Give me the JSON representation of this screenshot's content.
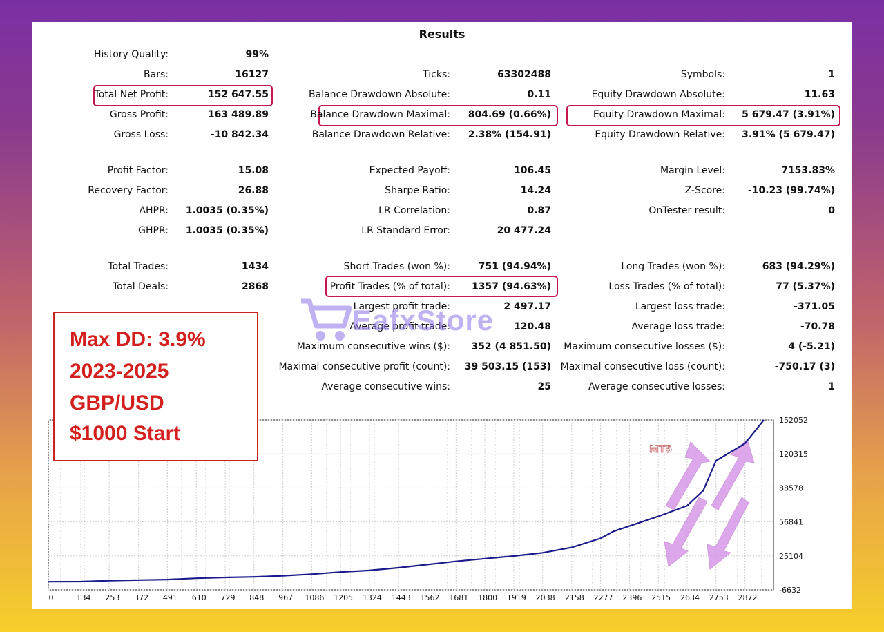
{
  "title": "Results",
  "stats": {
    "history_quality": {
      "label": "History Quality:",
      "value": "99%"
    },
    "bars": {
      "label": "Bars:",
      "value": "16127"
    },
    "ticks": {
      "label": "Ticks:",
      "value": "63302488"
    },
    "symbols": {
      "label": "Symbols:",
      "value": "1"
    },
    "total_net_profit": {
      "label": "Total Net Profit:",
      "value": "152 647.55"
    },
    "balance_dd_abs": {
      "label": "Balance Drawdown Absolute:",
      "value": "0.11"
    },
    "equity_dd_abs": {
      "label": "Equity Drawdown Absolute:",
      "value": "11.63"
    },
    "gross_profit": {
      "label": "Gross Profit:",
      "value": "163 489.89"
    },
    "balance_dd_max": {
      "label": "Balance Drawdown Maximal:",
      "value": "804.69 (0.66%)"
    },
    "equity_dd_max": {
      "label": "Equity Drawdown Maximal:",
      "value": "5 679.47 (3.91%)"
    },
    "gross_loss": {
      "label": "Gross Loss:",
      "value": "-10 842.34"
    },
    "balance_dd_rel": {
      "label": "Balance Drawdown Relative:",
      "value": "2.38% (154.91)"
    },
    "equity_dd_rel": {
      "label": "Equity Drawdown Relative:",
      "value": "3.91% (5 679.47)"
    },
    "profit_factor": {
      "label": "Profit Factor:",
      "value": "15.08"
    },
    "expected_payoff": {
      "label": "Expected Payoff:",
      "value": "106.45"
    },
    "margin_level": {
      "label": "Margin Level:",
      "value": "7153.83%"
    },
    "recovery_factor": {
      "label": "Recovery Factor:",
      "value": "26.88"
    },
    "sharpe_ratio": {
      "label": "Sharpe Ratio:",
      "value": "14.24"
    },
    "z_score": {
      "label": "Z-Score:",
      "value": "-10.23 (99.74%)"
    },
    "ahpr": {
      "label": "AHPR:",
      "value": "1.0035 (0.35%)"
    },
    "lr_correlation": {
      "label": "LR Correlation:",
      "value": "0.87"
    },
    "ontester": {
      "label": "OnTester result:",
      "value": "0"
    },
    "ghpr": {
      "label": "GHPR:",
      "value": "1.0035 (0.35%)"
    },
    "lr_std_error": {
      "label": "LR Standard Error:",
      "value": "20 477.24"
    },
    "total_trades": {
      "label": "Total Trades:",
      "value": "1434"
    },
    "short_trades": {
      "label": "Short Trades (won %):",
      "value": "751 (94.94%)"
    },
    "long_trades": {
      "label": "Long Trades (won %):",
      "value": "683 (94.29%)"
    },
    "total_deals": {
      "label": "Total Deals:",
      "value": "2868"
    },
    "profit_trades": {
      "label": "Profit Trades (% of total):",
      "value": "1357 (94.63%)"
    },
    "loss_trades": {
      "label": "Loss Trades (% of total):",
      "value": "77 (5.37%)"
    },
    "largest_profit": {
      "label": "Largest profit trade:",
      "value": "2 497.17"
    },
    "largest_loss": {
      "label": "Largest loss trade:",
      "value": "-371.05"
    },
    "avg_profit": {
      "label": "Average profit trade:",
      "value": "120.48"
    },
    "avg_loss": {
      "label": "Average loss trade:",
      "value": "-70.78"
    },
    "max_consec_wins": {
      "label": "Maximum consecutive wins ($):",
      "value": "352 (4 851.50)"
    },
    "max_consec_losses": {
      "label": "Maximum consecutive losses ($):",
      "value": "4 (-5.21)"
    },
    "maximal_consec_profit": {
      "label": "Maximal consecutive profit (count):",
      "value": "39 503.15 (153)"
    },
    "maximal_consec_loss": {
      "label": "Maximal consecutive loss (count):",
      "value": "-750.17 (3)"
    },
    "avg_consec_wins": {
      "label": "Average consecutive wins:",
      "value": "25"
    },
    "avg_consec_losses": {
      "label": "Average consecutive losses:",
      "value": "1"
    }
  },
  "promo": {
    "line1": "Max DD: 3.9%",
    "line2": "2023-2025",
    "line3": "GBP/USD",
    "line4": "$1000 Start"
  },
  "watermark": {
    "text": "EafxStore"
  },
  "chart_label": "MT5",
  "colors": {
    "highlight": "#c4184f",
    "promo_red": "#d41f1f",
    "balance_line": "#1a1a8c",
    "arrow_fill": "#d89ae8"
  },
  "chart_data": {
    "type": "line",
    "title": "",
    "xlabel": "",
    "ylabel": "",
    "x_ticks": [
      0,
      134,
      253,
      372,
      491,
      610,
      729,
      848,
      967,
      1086,
      1205,
      1324,
      1443,
      1562,
      1681,
      1800,
      1919,
      2038,
      2158,
      2277,
      2396,
      2515,
      2634,
      2753,
      2872
    ],
    "y_ticks": [
      152052,
      120315,
      88578,
      56841,
      25104,
      -6632
    ],
    "xlim": [
      0,
      2990
    ],
    "ylim": [
      -6632,
      152052
    ],
    "grid": true,
    "series": [
      {
        "x": [
          0,
          134,
          253,
          372,
          491,
          610,
          729,
          848,
          967,
          1086,
          1205,
          1324,
          1443,
          1562,
          1681,
          1800,
          1919,
          2038,
          2158,
          2277,
          2330,
          2396,
          2515,
          2634,
          2700,
          2753,
          2872,
          2950
        ],
        "y": [
          1000,
          1100,
          2000,
          2500,
          3000,
          4200,
          5000,
          5500,
          6500,
          8000,
          10000,
          11500,
          14000,
          17000,
          20000,
          22500,
          25000,
          28000,
          33000,
          41500,
          48000,
          53000,
          62000,
          72000,
          86000,
          114000,
          130000,
          152000
        ]
      }
    ]
  }
}
